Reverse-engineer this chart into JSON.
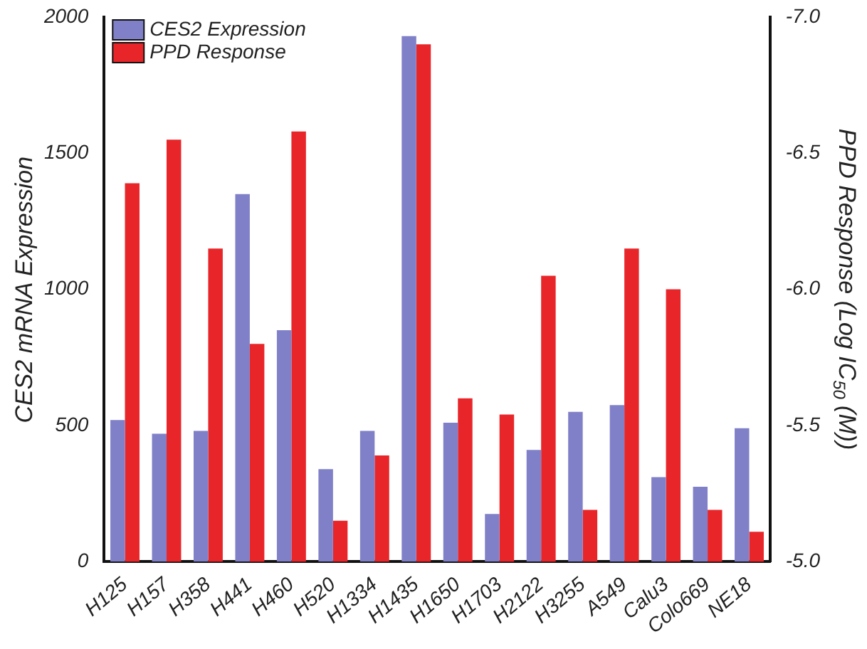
{
  "chart_data": {
    "type": "bar",
    "ylabel": "CES2 mRNA Expression",
    "y2label": "PPD Response (Log IC$_{50}$ (M))",
    "categories": [
      "H125",
      "H157",
      "H358",
      "H441",
      "H460",
      "H520",
      "H1334",
      "H1435",
      "H1650",
      "H1703",
      "H2122",
      "H3255",
      "A549",
      "Calu3",
      "Colo669",
      "NE18"
    ],
    "series": [
      {
        "name": "CES2 Expression",
        "color": "#8080c8",
        "values": [
          520,
          470,
          480,
          1350,
          850,
          340,
          480,
          1930,
          510,
          175,
          410,
          550,
          575,
          310,
          275,
          490
        ]
      },
      {
        "name": "PPD Response",
        "color": "#e8262a",
        "axis": "y2",
        "values": [
          -6.39,
          -6.55,
          -6.15,
          -5.8,
          -6.58,
          -5.15,
          -5.39,
          -6.9,
          -5.6,
          -5.54,
          -6.05,
          -5.19,
          -6.15,
          -6.0,
          -5.19,
          -5.11
        ]
      }
    ],
    "ylim": [
      0,
      2000
    ],
    "yticks": [
      0,
      500,
      1000,
      1500,
      2000
    ],
    "y2lim": [
      -5.0,
      -7.0
    ],
    "y2ticks": [
      {
        "value": -5,
        "label": "-5.0"
      },
      {
        "value": -5.5,
        "label": "-5.5"
      },
      {
        "value": -6,
        "label": "-6.0"
      },
      {
        "value": -6.5,
        "label": "-6.5"
      },
      {
        "value": -7,
        "label": "-7.0"
      }
    ],
    "grid": false,
    "legend": "top left"
  }
}
